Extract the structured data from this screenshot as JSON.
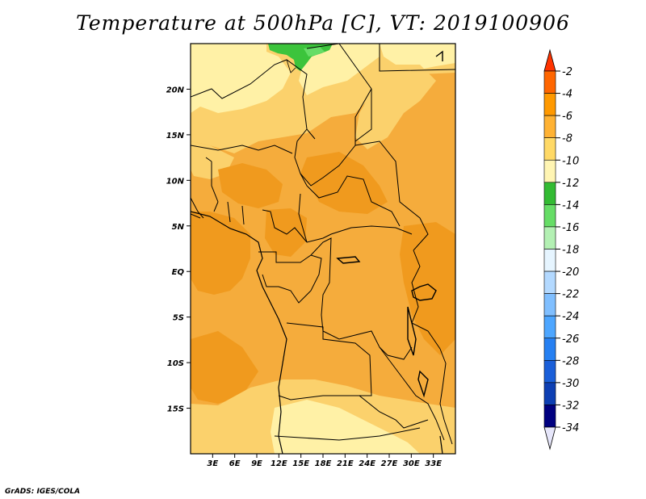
{
  "title": "Temperature at 500hPa [C], VT: 2019100906",
  "footer": "GrADS: IGES/COLA",
  "map": {
    "lon_range": [
      0,
      36
    ],
    "lat_range": [
      -20,
      25
    ],
    "lon_ticks": [
      {
        "value": 3,
        "label": "3E"
      },
      {
        "value": 6,
        "label": "6E"
      },
      {
        "value": 9,
        "label": "9E"
      },
      {
        "value": 12,
        "label": "12E"
      },
      {
        "value": 15,
        "label": "15E"
      },
      {
        "value": 18,
        "label": "18E"
      },
      {
        "value": 21,
        "label": "21E"
      },
      {
        "value": 24,
        "label": "24E"
      },
      {
        "value": 27,
        "label": "27E"
      },
      {
        "value": 30,
        "label": "30E"
      },
      {
        "value": 33,
        "label": "33E"
      }
    ],
    "lat_ticks": [
      {
        "value": 20,
        "label": "20N"
      },
      {
        "value": 15,
        "label": "15N"
      },
      {
        "value": 10,
        "label": "10N"
      },
      {
        "value": 5,
        "label": "5N"
      },
      {
        "value": 0,
        "label": "EQ"
      },
      {
        "value": -5,
        "label": "5S"
      },
      {
        "value": -10,
        "label": "10S"
      },
      {
        "value": -15,
        "label": "15S"
      }
    ]
  },
  "colorbar": {
    "labels": [
      "-2",
      "-4",
      "-6",
      "-8",
      "-10",
      "-12",
      "-14",
      "-16",
      "-18",
      "-20",
      "-22",
      "-24",
      "-26",
      "-28",
      "-30",
      "-32",
      "-34"
    ],
    "colors": [
      "#ff3300",
      "#ff6600",
      "#ff9900",
      "#ffb233",
      "#ffd966",
      "#fff5b3",
      "#33bb33",
      "#66dd66",
      "#b3f0b3",
      "#e6f5ff",
      "#b3d9ff",
      "#80bfff",
      "#4da6ff",
      "#2680f2",
      "#1a5fd9",
      "#0d3fb3",
      "#000080",
      "#e6e6fa"
    ]
  },
  "colors": {
    "dominant_fill": "#f5ac3c",
    "darker_fill": "#f09a1e",
    "lighter_fill": "#fbd16c",
    "palest_fill": "#fff1a6",
    "green_fill": "#3cc43c"
  }
}
